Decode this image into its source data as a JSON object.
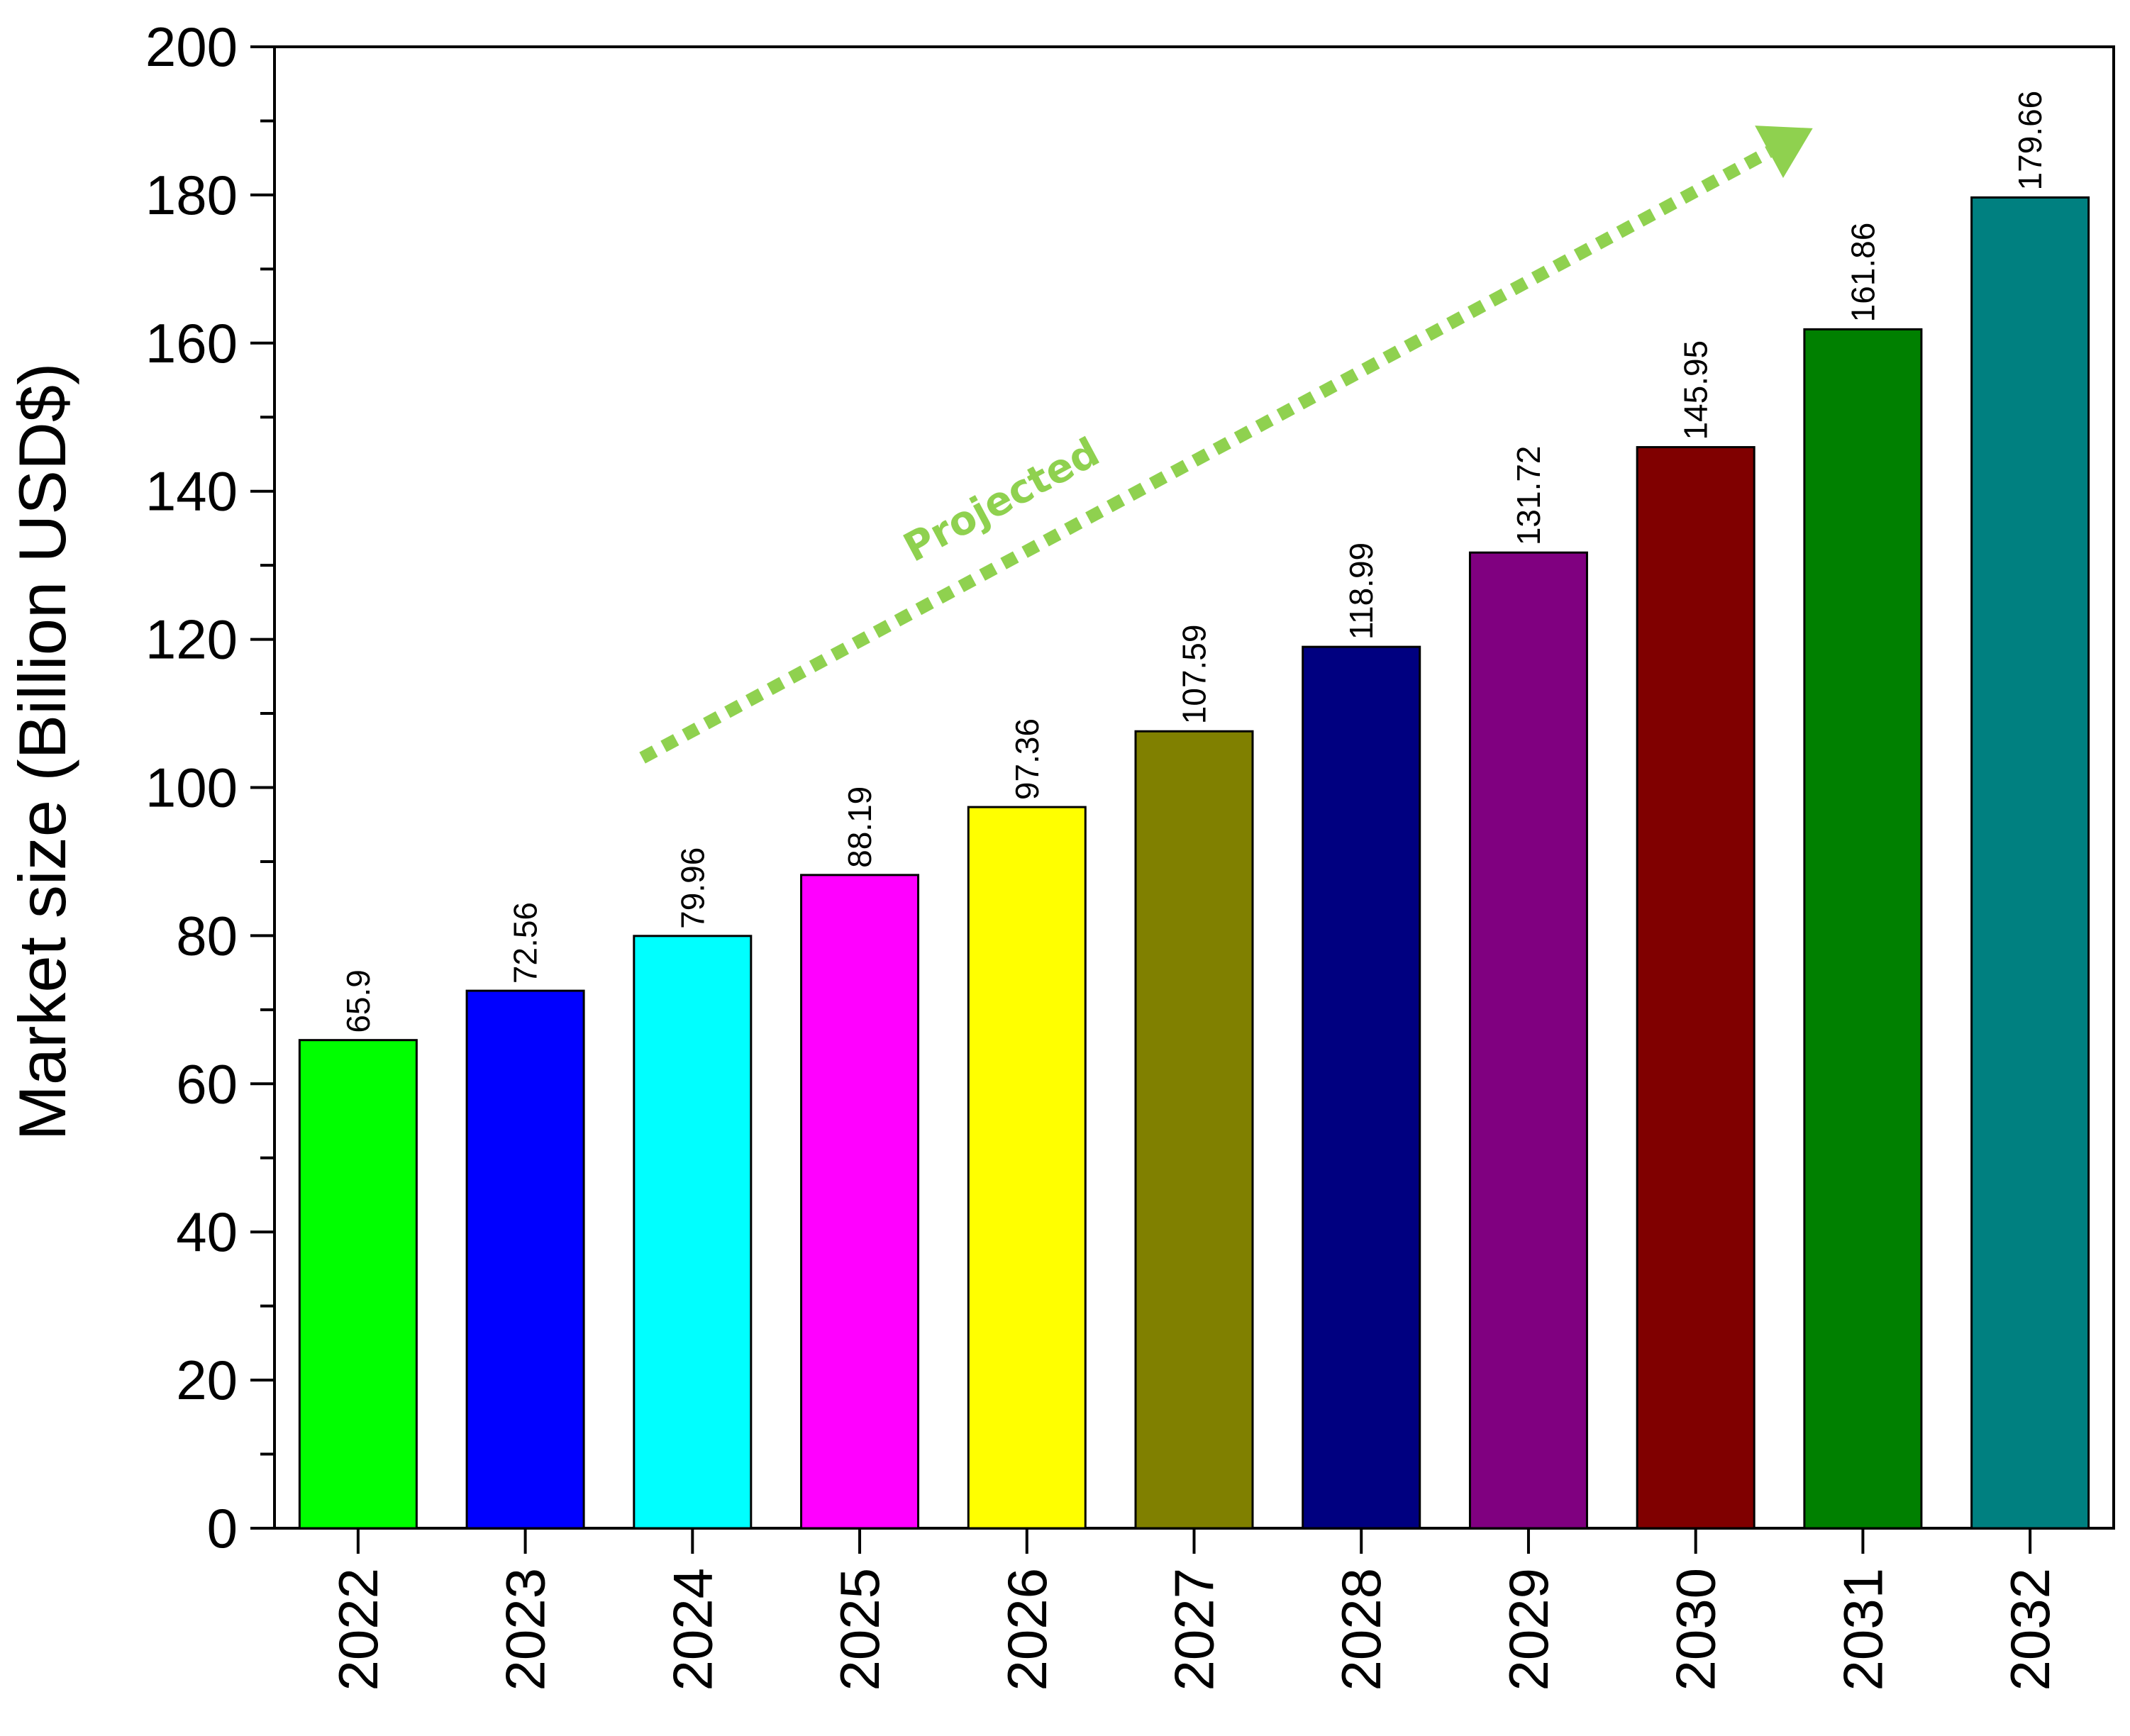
{
  "chart_data": {
    "type": "bar",
    "title": "",
    "xlabel": "",
    "ylabel": "Market size (Billion USD$)",
    "ylim": [
      0,
      200
    ],
    "yticks": [
      0,
      20,
      40,
      60,
      80,
      100,
      120,
      140,
      160,
      180,
      200
    ],
    "categories": [
      "2022",
      "2023",
      "2024",
      "2025",
      "2026",
      "2027",
      "2028",
      "2029",
      "2030",
      "2031",
      "2032"
    ],
    "values": [
      65.9,
      72.56,
      79.96,
      88.19,
      97.36,
      107.59,
      118.99,
      131.72,
      145.95,
      161.86,
      179.66
    ],
    "value_labels": [
      "65.9",
      "72.56",
      "79.96",
      "88.19",
      "97.36",
      "107.59",
      "118.99",
      "131.72",
      "145.95",
      "161.86",
      "179.66"
    ],
    "colors": [
      "#00ff00",
      "#0000ff",
      "#00ffff",
      "#ff00ff",
      "#ffff00",
      "#808000",
      "#000080",
      "#800080",
      "#800000",
      "#008000",
      "#008080"
    ],
    "annotation": {
      "text": "Projected",
      "color": "#8fd14f",
      "from_value": 104,
      "to_value": 189,
      "from_category": "2024",
      "to_category": "2031"
    }
  }
}
